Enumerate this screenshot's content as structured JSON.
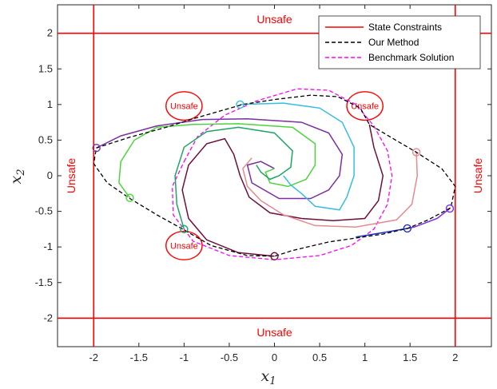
{
  "chart_data": {
    "type": "line",
    "xlabel": "x1",
    "ylabel": "x2",
    "xlim": [
      -2.4,
      2.4
    ],
    "ylim": [
      -2.4,
      2.4
    ],
    "xticks": [
      -2,
      -1.5,
      -1,
      -0.5,
      0,
      0.5,
      1,
      1.5,
      2
    ],
    "yticks": [
      -2,
      -1.5,
      -1,
      -0.5,
      0,
      0.5,
      1,
      1.5,
      2
    ],
    "x_tick_labels": [
      "-2",
      "-1.5",
      "-1",
      "-0.5",
      "0",
      "0.5",
      "1",
      "1.5",
      "2"
    ],
    "y_tick_labels": [
      "-2",
      "-1.5",
      "-1",
      "-0.5",
      "0",
      "0.5",
      "1",
      "1.5",
      "2"
    ],
    "legend": {
      "position": "top-right",
      "entries": [
        {
          "label": "State Constraints",
          "color": "#ff0000",
          "style": "solid"
        },
        {
          "label": "Our Method",
          "color": "#000000",
          "style": "dashed"
        },
        {
          "label": "Benchmark Solution",
          "color": "#ff00ff",
          "style": "dashed"
        }
      ]
    },
    "constraints": {
      "x_bounds": [
        -2,
        2
      ],
      "y_bounds": [
        -2,
        2
      ],
      "color": "#ff0000"
    },
    "unsafe_labels": {
      "top": {
        "text": "Unsafe",
        "x": 0,
        "y": 2.2
      },
      "bottom": {
        "text": "Unsafe",
        "x": 0,
        "y": -2.2
      },
      "left": {
        "text": "Unsafe",
        "x": -2.25,
        "y": 0
      },
      "right": {
        "text": "Unsafe",
        "x": 2.25,
        "y": 0
      }
    },
    "obstacles": [
      {
        "label": "Unsafe",
        "cx": -1.0,
        "cy": 0.98,
        "rx": 0.2,
        "ry": 0.2
      },
      {
        "label": "Unsafe",
        "cx": 1.0,
        "cy": 0.98,
        "rx": 0.2,
        "ry": 0.2
      },
      {
        "label": "Unsafe",
        "cx": -1.0,
        "cy": -0.98,
        "rx": 0.2,
        "ry": 0.2
      }
    ],
    "our_method_boundary": [
      [
        -1.97,
        0.39
      ],
      [
        -1.6,
        0.54
      ],
      [
        -1.2,
        0.68
      ],
      [
        -0.9,
        0.8
      ],
      [
        -0.6,
        0.91
      ],
      [
        -0.35,
        1.0
      ],
      [
        0.0,
        1.07
      ],
      [
        0.4,
        1.13
      ],
      [
        0.7,
        1.11
      ],
      [
        0.95,
        0.95
      ],
      [
        1.05,
        0.72
      ],
      [
        1.3,
        0.53
      ],
      [
        1.57,
        0.33
      ],
      [
        1.85,
        0.1
      ],
      [
        2.0,
        -0.15
      ],
      [
        1.95,
        -0.45
      ],
      [
        1.7,
        -0.62
      ],
      [
        1.47,
        -0.74
      ],
      [
        1.2,
        -0.82
      ],
      [
        0.6,
        -0.93
      ],
      [
        0.2,
        -1.05
      ],
      [
        0.0,
        -1.13
      ],
      [
        -0.3,
        -1.12
      ],
      [
        -0.7,
        -0.98
      ],
      [
        -1.0,
        -0.76
      ],
      [
        -1.3,
        -0.55
      ],
      [
        -1.6,
        -0.32
      ],
      [
        -1.85,
        -0.1
      ],
      [
        -2.0,
        0.17
      ],
      [
        -1.97,
        0.39
      ]
    ],
    "benchmark_boundary": [
      [
        -1.0,
        0.2
      ],
      [
        -0.85,
        0.55
      ],
      [
        -0.55,
        0.85
      ],
      [
        -0.2,
        1.05
      ],
      [
        0.25,
        1.22
      ],
      [
        0.6,
        1.2
      ],
      [
        0.9,
        1.0
      ],
      [
        1.1,
        0.7
      ],
      [
        1.25,
        0.35
      ],
      [
        1.3,
        0.0
      ],
      [
        1.25,
        -0.4
      ],
      [
        1.1,
        -0.75
      ],
      [
        0.85,
        -0.98
      ],
      [
        0.5,
        -1.12
      ],
      [
        0.0,
        -1.18
      ],
      [
        -0.5,
        -1.12
      ],
      [
        -0.9,
        -0.92
      ],
      [
        -1.12,
        -0.55
      ],
      [
        -1.13,
        -0.15
      ],
      [
        -1.0,
        0.2
      ]
    ],
    "series": [
      {
        "color": "#7b2fa0",
        "start": [
          -1.97,
          0.39
        ],
        "points": [
          [
            -1.97,
            0.39
          ],
          [
            -1.7,
            0.56
          ],
          [
            -1.3,
            0.7
          ],
          [
            -0.8,
            0.79
          ],
          [
            -0.3,
            0.8
          ],
          [
            0.3,
            0.75
          ],
          [
            0.6,
            0.6
          ],
          [
            0.75,
            0.3
          ],
          [
            0.72,
            0.0
          ],
          [
            0.6,
            -0.2
          ],
          [
            0.4,
            -0.32
          ],
          [
            0.05,
            -0.32
          ],
          [
            -0.25,
            -0.1
          ],
          [
            -0.3,
            0.15
          ],
          [
            -0.15,
            0.2
          ],
          [
            0.0,
            0.1
          ]
        ]
      },
      {
        "color": "#4ed33d",
        "start": [
          -1.6,
          -0.31
        ],
        "points": [
          [
            -1.6,
            -0.31
          ],
          [
            -1.72,
            -0.1
          ],
          [
            -1.7,
            0.2
          ],
          [
            -1.55,
            0.5
          ],
          [
            -1.3,
            0.68
          ],
          [
            -0.9,
            0.72
          ],
          [
            -0.4,
            0.73
          ],
          [
            0.2,
            0.68
          ],
          [
            0.45,
            0.45
          ],
          [
            0.45,
            0.15
          ],
          [
            0.35,
            -0.05
          ],
          [
            0.15,
            -0.15
          ],
          [
            -0.05,
            -0.1
          ],
          [
            -0.1,
            0.05
          ],
          [
            0.0,
            0.1
          ]
        ]
      },
      {
        "color": "#37bde0",
        "start": [
          -0.38,
          1.0
        ],
        "points": [
          [
            -0.38,
            1.0
          ],
          [
            0.1,
            1.02
          ],
          [
            0.5,
            0.95
          ],
          [
            0.75,
            0.75
          ],
          [
            0.88,
            0.4
          ],
          [
            0.88,
            0.0
          ],
          [
            0.8,
            -0.3
          ],
          [
            0.72,
            -0.48
          ],
          [
            0.45,
            -0.43
          ],
          [
            0.3,
            -0.25
          ],
          [
            0.18,
            -0.13
          ],
          [
            0.1,
            0.0
          ]
        ]
      },
      {
        "color": "#1ea565",
        "start": [
          -1.0,
          -0.75
        ],
        "points": [
          [
            -1.0,
            -0.75
          ],
          [
            -1.08,
            -0.4
          ],
          [
            -1.1,
            0.0
          ],
          [
            -1.0,
            0.4
          ],
          [
            -0.75,
            0.62
          ],
          [
            -0.4,
            0.68
          ],
          [
            0.0,
            0.6
          ],
          [
            0.2,
            0.35
          ],
          [
            0.18,
            0.12
          ],
          [
            0.05,
            0.0
          ],
          [
            -0.05,
            -0.05
          ],
          [
            -0.15,
            0.05
          ],
          [
            -0.2,
            0.15
          ]
        ]
      },
      {
        "color": "#6e0f3b",
        "start": [
          0.0,
          -1.13
        ],
        "points": [
          [
            0.0,
            -1.13
          ],
          [
            -0.4,
            -1.08
          ],
          [
            -0.75,
            -0.9
          ],
          [
            -0.95,
            -0.6
          ],
          [
            -1.02,
            -0.2
          ],
          [
            -0.95,
            0.15
          ],
          [
            -0.75,
            0.45
          ],
          [
            -0.55,
            0.52
          ],
          [
            -0.45,
            0.3
          ],
          [
            -0.38,
            0.0
          ],
          [
            -0.28,
            -0.3
          ],
          [
            -0.05,
            -0.52
          ],
          [
            0.3,
            -0.6
          ],
          [
            0.65,
            -0.63
          ],
          [
            1.0,
            -0.6
          ],
          [
            1.15,
            -0.35
          ],
          [
            1.2,
            0.0
          ],
          [
            1.1,
            0.4
          ],
          [
            1.05,
            0.72
          ]
        ]
      },
      {
        "color": "#e48a90",
        "start": [
          1.57,
          0.33
        ],
        "points": [
          [
            1.57,
            0.33
          ],
          [
            1.58,
            0.0
          ],
          [
            1.52,
            -0.4
          ],
          [
            1.35,
            -0.62
          ],
          [
            0.9,
            -0.72
          ],
          [
            0.45,
            -0.7
          ],
          [
            0.1,
            -0.55
          ],
          [
            -0.15,
            -0.35
          ],
          [
            -0.3,
            -0.15
          ],
          [
            -0.35,
            0.1
          ],
          [
            -0.25,
            0.25
          ]
        ]
      },
      {
        "color": "#1c2fc4",
        "start": [
          1.47,
          -0.74
        ],
        "points": [
          [
            1.47,
            -0.74
          ],
          [
            1.2,
            -0.8
          ],
          [
            0.9,
            -0.86
          ]
        ]
      },
      {
        "color": "#7a2fe0",
        "start": [
          1.94,
          -0.46
        ],
        "points": [
          [
            1.94,
            -0.46
          ],
          [
            1.8,
            -0.6
          ],
          [
            1.55,
            -0.72
          ],
          [
            1.47,
            -0.74
          ]
        ]
      }
    ]
  }
}
